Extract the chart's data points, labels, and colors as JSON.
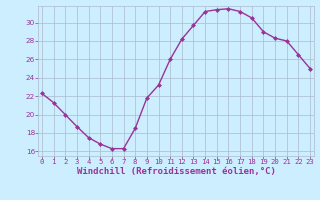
{
  "x": [
    0,
    1,
    2,
    3,
    4,
    5,
    6,
    7,
    8,
    9,
    10,
    11,
    12,
    13,
    14,
    15,
    16,
    17,
    18,
    19,
    20,
    21,
    22,
    23
  ],
  "y": [
    22.3,
    21.3,
    20.0,
    18.7,
    17.5,
    16.8,
    16.3,
    16.3,
    18.5,
    21.8,
    23.2,
    26.0,
    28.2,
    29.7,
    31.2,
    31.4,
    31.5,
    31.2,
    30.5,
    29.0,
    28.3,
    28.0,
    26.5,
    25.0
  ],
  "line_color": "#993399",
  "marker": "D",
  "markersize": 2.0,
  "bg_color": "#cceeff",
  "grid_color": "#aabbcc",
  "xlabel": "Windchill (Refroidissement éolien,°C)",
  "ylim": [
    15.5,
    31.8
  ],
  "xlim": [
    -0.3,
    23.3
  ],
  "yticks": [
    16,
    18,
    20,
    22,
    24,
    26,
    28,
    30
  ],
  "xticks": [
    0,
    1,
    2,
    3,
    4,
    5,
    6,
    7,
    8,
    9,
    10,
    11,
    12,
    13,
    14,
    15,
    16,
    17,
    18,
    19,
    20,
    21,
    22,
    23
  ],
  "tick_color": "#993399",
  "label_color": "#993399",
  "tick_fontsize": 5.2,
  "xlabel_fontsize": 6.5,
  "linewidth": 1.0
}
